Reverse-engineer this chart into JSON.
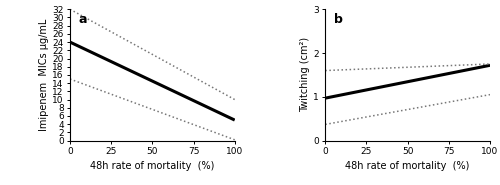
{
  "panel_a": {
    "label": "a",
    "xlabel": "48h rate of mortality  (%)",
    "ylabel": "Imipenem  MICs μg/mL",
    "xlim": [
      0,
      100
    ],
    "ylim": [
      0,
      32
    ],
    "yticks": [
      0,
      2,
      4,
      6,
      8,
      10,
      12,
      14,
      16,
      18,
      20,
      22,
      24,
      26,
      28,
      30,
      32
    ],
    "ytick_labels": [
      "0",
      "2",
      "4",
      "6",
      "8",
      "10",
      "12",
      "14",
      "16",
      "18",
      "20",
      "22",
      "24",
      "26",
      "28",
      "30",
      "32"
    ],
    "xticks": [
      0,
      25,
      50,
      75,
      100
    ],
    "main_line": {
      "x": [
        0,
        100
      ],
      "y": [
        24,
        5
      ]
    },
    "upper_ci": {
      "x": [
        0,
        100
      ],
      "y": [
        32,
        10
      ]
    },
    "lower_ci": {
      "x": [
        0,
        100
      ],
      "y": [
        15,
        0.2
      ]
    }
  },
  "panel_b": {
    "label": "b",
    "xlabel": "48h rate of mortality  (%)",
    "ylabel": "Twitching (cm²)",
    "xlim": [
      0,
      100
    ],
    "ylim": [
      0,
      3
    ],
    "yticks": [
      0,
      1,
      2,
      3
    ],
    "ytick_labels": [
      "0",
      "1",
      "2",
      "3"
    ],
    "xticks": [
      0,
      25,
      50,
      75,
      100
    ],
    "main_line": {
      "x": [
        0,
        100
      ],
      "y": [
        0.97,
        1.72
      ]
    },
    "upper_ci": {
      "x": [
        0,
        100
      ],
      "y": [
        1.6,
        1.75
      ]
    },
    "lower_ci": {
      "x": [
        0,
        100
      ],
      "y": [
        0.37,
        1.05
      ]
    }
  },
  "line_color": "#000000",
  "ci_color": "#777777",
  "line_width": 2.2,
  "ci_linewidth": 1.1,
  "ci_linestyle": "dotted",
  "font_size": 7.0,
  "label_fontsize": 9.0,
  "tick_fontsize": 6.5
}
